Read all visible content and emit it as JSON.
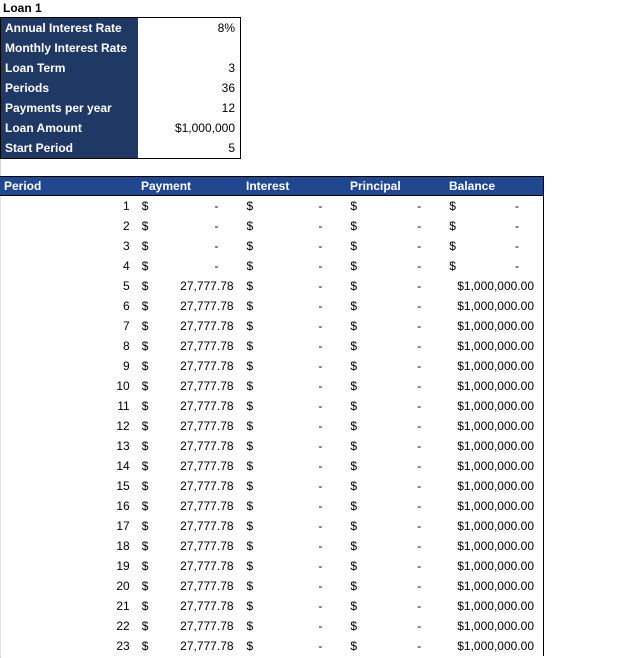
{
  "title": "Loan 1",
  "colors": {
    "params_label_bg": "#1F3864",
    "table_header_bg": "#21478F",
    "border": "#000000",
    "text": "#000000",
    "header_text": "#FFFFFF"
  },
  "parameters": [
    {
      "label": "Annual Interest Rate",
      "value": "8%"
    },
    {
      "label": "Monthly Interest Rate",
      "value": ""
    },
    {
      "label": "Loan Term",
      "value": "3"
    },
    {
      "label": "Periods",
      "value": "36"
    },
    {
      "label": "Payments per year",
      "value": "12"
    },
    {
      "label": "Loan Amount",
      "value": "$1,000,000"
    },
    {
      "label": "Start Period",
      "value": "5"
    }
  ],
  "schedule": {
    "columns": [
      "Period",
      "Payment",
      "Interest",
      "Principal",
      "Balance"
    ],
    "currency_symbol": "$",
    "empty_value": "-",
    "rows": [
      {
        "period": "1",
        "payment": "-",
        "interest": "-",
        "principal": "-",
        "balance": "-"
      },
      {
        "period": "2",
        "payment": "-",
        "interest": "-",
        "principal": "-",
        "balance": "-"
      },
      {
        "period": "3",
        "payment": "-",
        "interest": "-",
        "principal": "-",
        "balance": "-"
      },
      {
        "period": "4",
        "payment": "-",
        "interest": "-",
        "principal": "-",
        "balance": "-"
      },
      {
        "period": "5",
        "payment": "27,777.78",
        "interest": "-",
        "principal": "-",
        "balance": "$1,000,000.00"
      },
      {
        "period": "6",
        "payment": "27,777.78",
        "interest": "-",
        "principal": "-",
        "balance": "$1,000,000.00"
      },
      {
        "period": "7",
        "payment": "27,777.78",
        "interest": "-",
        "principal": "-",
        "balance": "$1,000,000.00"
      },
      {
        "period": "8",
        "payment": "27,777.78",
        "interest": "-",
        "principal": "-",
        "balance": "$1,000,000.00"
      },
      {
        "period": "9",
        "payment": "27,777.78",
        "interest": "-",
        "principal": "-",
        "balance": "$1,000,000.00"
      },
      {
        "period": "10",
        "payment": "27,777.78",
        "interest": "-",
        "principal": "-",
        "balance": "$1,000,000.00"
      },
      {
        "period": "11",
        "payment": "27,777.78",
        "interest": "-",
        "principal": "-",
        "balance": "$1,000,000.00"
      },
      {
        "period": "12",
        "payment": "27,777.78",
        "interest": "-",
        "principal": "-",
        "balance": "$1,000,000.00"
      },
      {
        "period": "13",
        "payment": "27,777.78",
        "interest": "-",
        "principal": "-",
        "balance": "$1,000,000.00"
      },
      {
        "period": "14",
        "payment": "27,777.78",
        "interest": "-",
        "principal": "-",
        "balance": "$1,000,000.00"
      },
      {
        "period": "15",
        "payment": "27,777.78",
        "interest": "-",
        "principal": "-",
        "balance": "$1,000,000.00"
      },
      {
        "period": "16",
        "payment": "27,777.78",
        "interest": "-",
        "principal": "-",
        "balance": "$1,000,000.00"
      },
      {
        "period": "17",
        "payment": "27,777.78",
        "interest": "-",
        "principal": "-",
        "balance": "$1,000,000.00"
      },
      {
        "period": "18",
        "payment": "27,777.78",
        "interest": "-",
        "principal": "-",
        "balance": "$1,000,000.00"
      },
      {
        "period": "19",
        "payment": "27,777.78",
        "interest": "-",
        "principal": "-",
        "balance": "$1,000,000.00"
      },
      {
        "period": "20",
        "payment": "27,777.78",
        "interest": "-",
        "principal": "-",
        "balance": "$1,000,000.00"
      },
      {
        "period": "21",
        "payment": "27,777.78",
        "interest": "-",
        "principal": "-",
        "balance": "$1,000,000.00"
      },
      {
        "period": "22",
        "payment": "27,777.78",
        "interest": "-",
        "principal": "-",
        "balance": "$1,000,000.00"
      },
      {
        "period": "23",
        "payment": "27,777.78",
        "interest": "-",
        "principal": "-",
        "balance": "$1,000,000.00"
      }
    ]
  }
}
